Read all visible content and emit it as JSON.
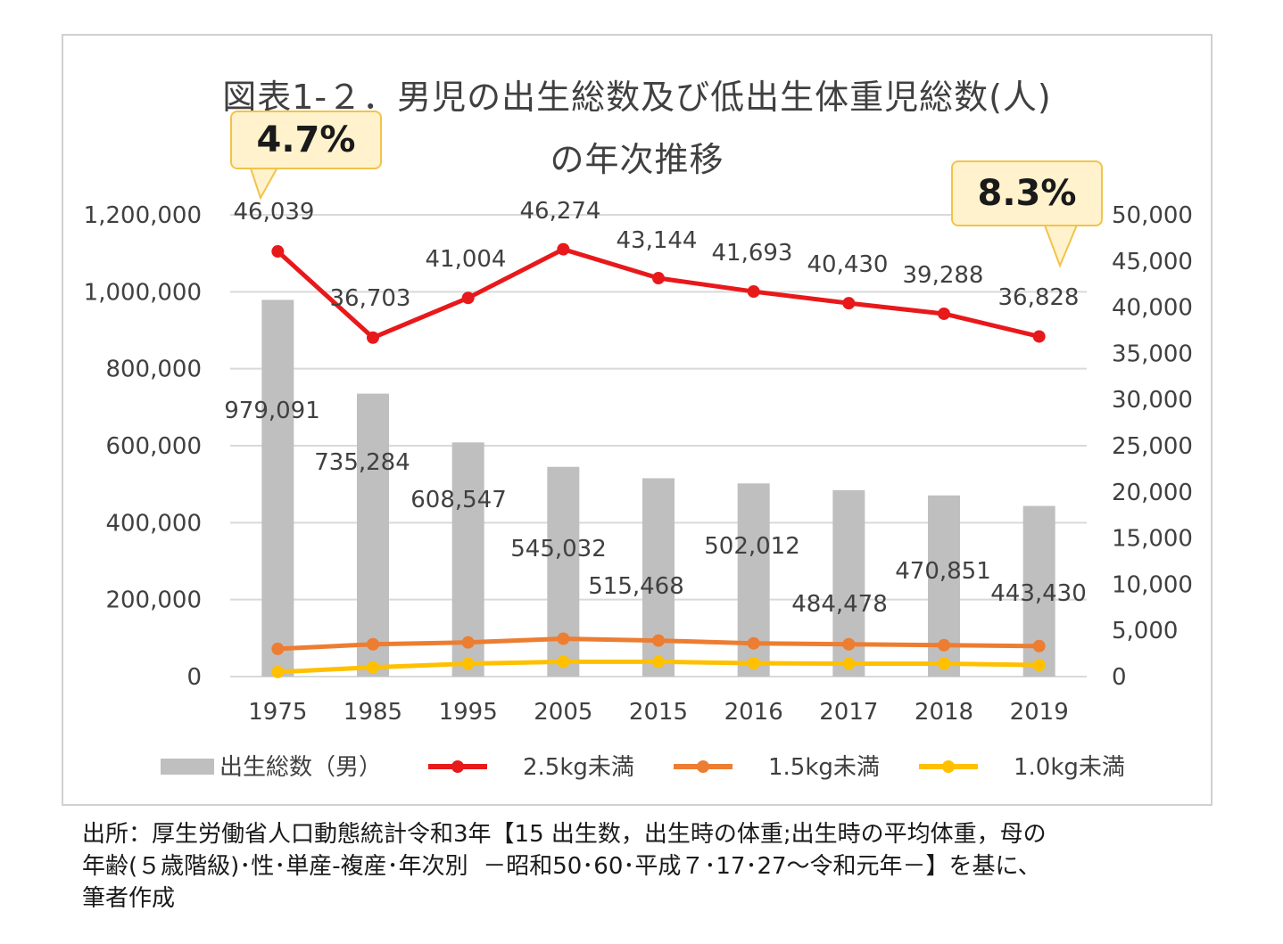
{
  "title": {
    "line1": "図表1-２．男児の出生総数及び低出生体重児総数(人)",
    "line2": "の年次推移"
  },
  "callouts": {
    "left": "4.7%",
    "right": "8.3%"
  },
  "source": {
    "line1": "出所：厚生労働省人口動態統計令和3年【15 出生数，出生時の体重;出生時の平均体重，母の",
    "line2": "年齢(５歳階級)･性･単産-複産･年次別  －昭和50･60･平成７･17･27～令和元年－】を基に、",
    "line3": "筆者作成"
  },
  "chart_data": {
    "type": "bar",
    "categories": [
      "1975",
      "1985",
      "1995",
      "2005",
      "2015",
      "2016",
      "2017",
      "2018",
      "2019"
    ],
    "series": [
      {
        "name": "出生総数（男）",
        "type": "bar",
        "axis": "left",
        "color": "#bfbfbf",
        "values": [
          979091,
          735284,
          608547,
          545032,
          515468,
          502012,
          484478,
          470851,
          443430
        ],
        "labels": [
          "979,091",
          "735,284",
          "608,547",
          "545,032",
          "515,468",
          "502,012",
          "484,478",
          "470,851",
          "443,430"
        ]
      },
      {
        "name": "2.5kg未満",
        "type": "line",
        "axis": "right",
        "color": "#e8191b",
        "values": [
          46039,
          36703,
          41004,
          46274,
          43144,
          41693,
          40430,
          39288,
          36828
        ],
        "labels": [
          "46,039",
          "36,703",
          "41,004",
          "46,274",
          "43,144",
          "41,693",
          "40,430",
          "39,288",
          "36,828"
        ]
      },
      {
        "name": "1.5kg未満",
        "type": "line",
        "axis": "right",
        "color": "#ed7d31",
        "values": [
          3000,
          3500,
          3700,
          4100,
          3900,
          3600,
          3500,
          3400,
          3300
        ]
      },
      {
        "name": "1.0kg未満",
        "type": "line",
        "axis": "right",
        "color": "#ffc000",
        "values": [
          500,
          1000,
          1400,
          1600,
          1600,
          1450,
          1400,
          1400,
          1250
        ]
      }
    ],
    "y_left": {
      "min": 0,
      "max": 1200000,
      "ticks": [
        "0",
        "200,000",
        "400,000",
        "600,000",
        "800,000",
        "1,000,000",
        "1,200,000"
      ]
    },
    "y_right": {
      "min": 0,
      "max": 50000,
      "ticks": [
        "0",
        "5,000",
        "10,000",
        "15,000",
        "20,000",
        "25,000",
        "30,000",
        "35,000",
        "40,000",
        "45,000",
        "50,000"
      ]
    },
    "grid": true,
    "legend": "bottom"
  }
}
